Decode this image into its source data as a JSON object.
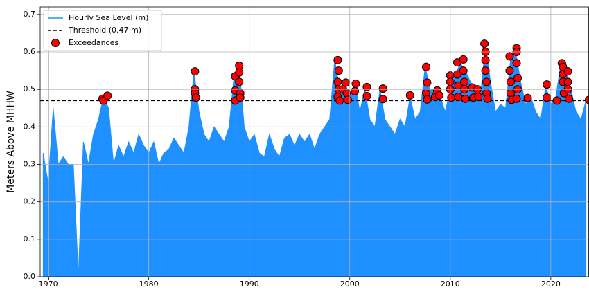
{
  "chart_data": {
    "type": "line",
    "ylabel": "Meters Above MHHW",
    "xlim": [
      1969.2,
      2023.8
    ],
    "xticks": [
      1970,
      1980,
      1990,
      2000,
      2010,
      2020
    ],
    "ylim": [
      0,
      0.72
    ],
    "yticks": [
      {
        "value": 0,
        "label": "0.0"
      },
      0.1,
      0.2,
      0.3,
      0.4,
      0.5,
      0.6,
      0.7
    ],
    "grid": true,
    "legend": "upper left",
    "series": [
      {
        "name": "Hourly Sea Level (m)",
        "color": "#1e90ff",
        "x": [
          1969.5,
          1970,
          1970.5,
          1971,
          1971.5,
          1972,
          1972.5,
          1973,
          1973.5,
          1974,
          1974.5,
          1975,
          1975.5,
          1976,
          1976.5,
          1977,
          1977.5,
          1978,
          1978.5,
          1979,
          1979.5,
          1980,
          1980.5,
          1981,
          1981.5,
          1982,
          1982.5,
          1983,
          1983.5,
          1984,
          1984.5,
          1985,
          1985.5,
          1986,
          1986.5,
          1987,
          1987.5,
          1988,
          1988.5,
          1989,
          1989.5,
          1990,
          1990.5,
          1991,
          1991.5,
          1992,
          1992.5,
          1993,
          1993.5,
          1994,
          1994.5,
          1995,
          1995.5,
          1996,
          1996.5,
          1997,
          1997.5,
          1998,
          1998.5,
          1999,
          1999.5,
          2000,
          2000.5,
          2001,
          2001.5,
          2002,
          2002.5,
          2003,
          2003.5,
          2004,
          2004.5,
          2005,
          2005.5,
          2006,
          2006.5,
          2007,
          2007.5,
          2008,
          2008.5,
          2009,
          2009.5,
          2010,
          2010.5,
          2011,
          2011.5,
          2012,
          2012.5,
          2013,
          2013.5,
          2014,
          2014.5,
          2015,
          2015.5,
          2016,
          2016.5,
          2017,
          2017.5,
          2018,
          2018.5,
          2019,
          2019.5,
          2020,
          2020.5,
          2021,
          2021.5,
          2022,
          2022.5,
          2023,
          2023.5
        ],
        "values": [
          0.33,
          0.25,
          0.45,
          0.3,
          0.32,
          0.3,
          0.3,
          0.0,
          0.36,
          0.3,
          0.38,
          0.42,
          0.48,
          0.45,
          0.3,
          0.35,
          0.32,
          0.36,
          0.33,
          0.38,
          0.35,
          0.33,
          0.36,
          0.3,
          0.33,
          0.34,
          0.37,
          0.35,
          0.33,
          0.4,
          0.55,
          0.44,
          0.38,
          0.36,
          0.4,
          0.38,
          0.36,
          0.4,
          0.54,
          0.56,
          0.4,
          0.36,
          0.38,
          0.33,
          0.32,
          0.38,
          0.34,
          0.32,
          0.37,
          0.38,
          0.35,
          0.38,
          0.36,
          0.38,
          0.34,
          0.38,
          0.4,
          0.42,
          0.58,
          0.5,
          0.52,
          0.48,
          0.52,
          0.44,
          0.5,
          0.42,
          0.4,
          0.5,
          0.42,
          0.4,
          0.38,
          0.42,
          0.4,
          0.48,
          0.42,
          0.44,
          0.56,
          0.5,
          0.5,
          0.48,
          0.44,
          0.5,
          0.54,
          0.57,
          0.55,
          0.52,
          0.5,
          0.48,
          0.62,
          0.52,
          0.44,
          0.46,
          0.45,
          0.58,
          0.6,
          0.52,
          0.46,
          0.48,
          0.44,
          0.42,
          0.51,
          0.46,
          0.48,
          0.57,
          0.55,
          0.5,
          0.44,
          0.42,
          0.47
        ]
      }
    ],
    "threshold": {
      "name": "Threshold (0.47 m)",
      "value": 0.47,
      "color": "#000000"
    },
    "exceedances": {
      "name": "Exceedances",
      "color": "#ff0000",
      "x": [
        1975.4,
        1975.5,
        1975.9,
        1984.6,
        1984.6,
        1984.6,
        1984.7,
        1988.6,
        1988.6,
        1988.6,
        1989.0,
        1989.0,
        1989.0,
        1989.1,
        1989.1,
        1998.8,
        1998.9,
        1998.8,
        1998.9,
        1998.8,
        1999.0,
        1999.3,
        1999.6,
        1999.7,
        1999.8,
        2000.6,
        2000.5,
        2001.7,
        2001.7,
        2003.3,
        2003.3,
        2006.0,
        2007.6,
        2007.7,
        2007.6,
        2007.7,
        2008.5,
        2008.7,
        2008.9,
        2010.0,
        2010.0,
        2010.0,
        2010.1,
        2010.7,
        2010.7,
        2010.8,
        2010.8,
        2011.3,
        2011.3,
        2011.4,
        2011.4,
        2011.5,
        2012.2,
        2012.3,
        2012.7,
        2012.8,
        2013.4,
        2013.5,
        2013.5,
        2013.5,
        2013.6,
        2013.6,
        2013.7,
        2015.9,
        2015.9,
        2016.0,
        2016.0,
        2016.1,
        2016.6,
        2016.6,
        2016.6,
        2016.7,
        2016.7,
        2016.6,
        2017.7,
        2019.6,
        2019.6,
        2020.6,
        2021.1,
        2021.2,
        2021.2,
        2021.2,
        2021.3,
        2021.7,
        2021.7,
        2021.7,
        2021.8,
        2023.8
      ],
      "values": [
        0.475,
        0.47,
        0.483,
        0.548,
        0.5,
        0.49,
        0.478,
        0.535,
        0.497,
        0.47,
        0.563,
        0.545,
        0.52,
        0.49,
        0.478,
        0.578,
        0.55,
        0.52,
        0.5,
        0.48,
        0.47,
        0.5,
        0.518,
        0.49,
        0.472,
        0.515,
        0.495,
        0.506,
        0.482,
        0.502,
        0.474,
        0.484,
        0.56,
        0.518,
        0.49,
        0.473,
        0.48,
        0.497,
        0.484,
        0.537,
        0.52,
        0.5,
        0.478,
        0.572,
        0.54,
        0.51,
        0.48,
        0.58,
        0.55,
        0.52,
        0.5,
        0.475,
        0.505,
        0.478,
        0.5,
        0.48,
        0.622,
        0.6,
        0.578,
        0.55,
        0.52,
        0.49,
        0.475,
        0.588,
        0.55,
        0.52,
        0.49,
        0.472,
        0.61,
        0.6,
        0.57,
        0.53,
        0.5,
        0.475,
        0.477,
        0.513,
        0.478,
        0.47,
        0.57,
        0.56,
        0.54,
        0.52,
        0.49,
        0.548,
        0.52,
        0.5,
        0.475,
        0.472
      ]
    }
  }
}
